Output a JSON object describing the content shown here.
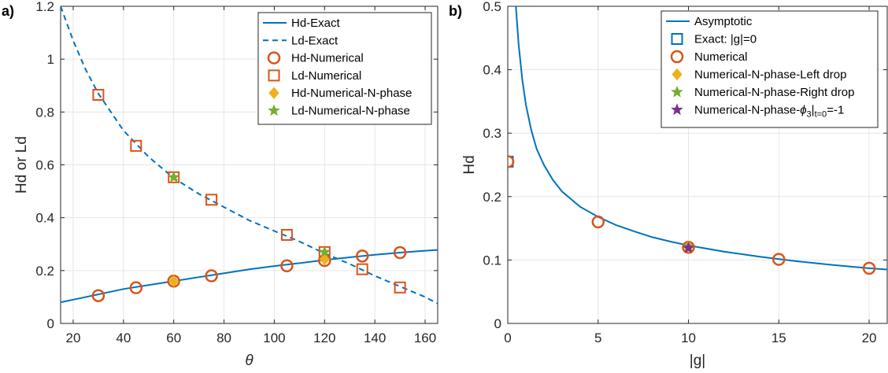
{
  "colors": {
    "blue": "#0072BD",
    "orange": "#D95319",
    "yellow": "#EDB120",
    "purple": "#7E2F8E",
    "green": "#77AC30",
    "grid": "#e6e6e6",
    "axis": "#262626"
  },
  "chart_data": [
    {
      "panel_label": "a)",
      "type": "line",
      "xlabel": "θ",
      "ylabel": "Hd or Ld",
      "xlim": [
        15,
        165
      ],
      "ylim": [
        0,
        1.2
      ],
      "xticks": [
        20,
        40,
        60,
        80,
        100,
        120,
        140,
        160
      ],
      "yticks": [
        0,
        0.2,
        0.4,
        0.6,
        0.8,
        1,
        1.2
      ],
      "xtick_labels": [
        "20",
        "40",
        "60",
        "80",
        "100",
        "120",
        "140",
        "160"
      ],
      "ytick_labels": [
        "0",
        "0.2",
        "0.4",
        "0.6",
        "0.8",
        "1",
        "1.2"
      ],
      "grid": true,
      "legend_position": "top-right",
      "legend": [
        {
          "label": "Hd-Exact",
          "marker": "solid-line",
          "color": "blue"
        },
        {
          "label": "Ld-Exact",
          "marker": "dashed-line",
          "color": "blue"
        },
        {
          "label": "Hd-Numerical",
          "marker": "circle",
          "color": "orange"
        },
        {
          "label": "Ld-Numerical",
          "marker": "square",
          "color": "orange"
        },
        {
          "label": "Hd-Numerical-N-phase",
          "marker": "diamond",
          "color": "yellow"
        },
        {
          "label": "Ld-Numerical-N-phase",
          "marker": "star",
          "color": "green"
        }
      ],
      "series": [
        {
          "name": "Hd-Exact",
          "style": "solid",
          "color": "blue",
          "x": [
            15,
            20,
            30,
            40,
            50,
            60,
            70,
            80,
            90,
            100,
            110,
            120,
            130,
            140,
            150,
            160,
            165
          ],
          "y": [
            0.08,
            0.09,
            0.11,
            0.13,
            0.145,
            0.16,
            0.175,
            0.19,
            0.205,
            0.217,
            0.228,
            0.24,
            0.25,
            0.26,
            0.268,
            0.275,
            0.278
          ]
        },
        {
          "name": "Ld-Exact",
          "style": "dashed",
          "color": "blue",
          "x": [
            15,
            20,
            25,
            30,
            40,
            50,
            60,
            70,
            80,
            90,
            100,
            110,
            120,
            130,
            140,
            150,
            160,
            165
          ],
          "y": [
            1.2,
            1.07,
            0.96,
            0.87,
            0.73,
            0.63,
            0.55,
            0.49,
            0.44,
            0.39,
            0.35,
            0.31,
            0.265,
            0.225,
            0.18,
            0.14,
            0.1,
            0.075
          ]
        },
        {
          "name": "Hd-Numerical",
          "marker": "circle",
          "color": "orange",
          "x": [
            30,
            45,
            60,
            75,
            105,
            120,
            135,
            150
          ],
          "y": [
            0.105,
            0.135,
            0.16,
            0.18,
            0.218,
            0.238,
            0.255,
            0.268
          ]
        },
        {
          "name": "Ld-Numerical",
          "marker": "square",
          "color": "orange",
          "x": [
            30,
            45,
            60,
            75,
            105,
            120,
            135,
            150
          ],
          "y": [
            0.865,
            0.672,
            0.553,
            0.468,
            0.335,
            0.27,
            0.205,
            0.136
          ]
        },
        {
          "name": "Hd-Numerical-N-phase",
          "marker": "diamond",
          "color": "yellow",
          "x": [
            60,
            120
          ],
          "y": [
            0.16,
            0.243
          ]
        },
        {
          "name": "Ld-Numerical-N-phase",
          "marker": "star",
          "color": "green",
          "x": [
            60,
            120
          ],
          "y": [
            0.553,
            0.27
          ]
        }
      ]
    },
    {
      "panel_label": "b)",
      "type": "line",
      "xlabel": "|g|",
      "ylabel": "Hd",
      "xlim": [
        0,
        21
      ],
      "ylim": [
        0,
        0.5
      ],
      "xticks": [
        0,
        5,
        10,
        15,
        20
      ],
      "yticks": [
        0,
        0.1,
        0.2,
        0.3,
        0.4,
        0.5
      ],
      "xtick_labels": [
        "0",
        "5",
        "10",
        "15",
        "20"
      ],
      "ytick_labels": [
        "0",
        "0.1",
        "0.2",
        "0.3",
        "0.4",
        "0.5"
      ],
      "grid": true,
      "legend_position": "top-right",
      "legend": [
        {
          "label": "Asymptotic",
          "marker": "solid-line",
          "color": "blue"
        },
        {
          "label": "Exact: |g|=0",
          "marker": "square",
          "color": "blue"
        },
        {
          "label": "Numerical",
          "marker": "circle",
          "color": "orange"
        },
        {
          "label": "Numerical-N-phase-Left drop",
          "marker": "diamond",
          "color": "yellow"
        },
        {
          "label": "Numerical-N-phase-Right drop",
          "marker": "star",
          "color": "green"
        },
        {
          "label_prefix": "Numerical-N-phase-",
          "label_phi": "ϕ",
          "label_phi_sub": "3",
          "label_bar": "|",
          "label_cond_sub": "t=0",
          "label_suffix": "=-1",
          "marker": "star",
          "color": "purple"
        }
      ],
      "series": [
        {
          "name": "Asymptotic",
          "style": "solid",
          "color": "blue",
          "x": [
            0.45,
            0.6,
            0.8,
            1,
            1.3,
            1.6,
            2,
            2.5,
            3,
            4,
            5,
            6,
            7,
            8,
            9,
            10,
            12,
            14,
            16,
            18,
            20,
            21
          ],
          "y": [
            0.5,
            0.44,
            0.385,
            0.345,
            0.305,
            0.275,
            0.25,
            0.226,
            0.208,
            0.184,
            0.168,
            0.155,
            0.145,
            0.136,
            0.129,
            0.123,
            0.113,
            0.105,
            0.098,
            0.092,
            0.087,
            0.085
          ]
        },
        {
          "name": "Exact: |g|=0",
          "marker": "square",
          "color": "blue",
          "x": [
            0
          ],
          "y": [
            0.255
          ]
        },
        {
          "name": "Numerical",
          "marker": "circle",
          "color": "orange",
          "x": [
            0,
            5,
            10,
            15,
            20
          ],
          "y": [
            0.255,
            0.16,
            0.12,
            0.101,
            0.087
          ]
        },
        {
          "name": "Numerical-N-phase-Left drop",
          "marker": "diamond",
          "color": "yellow",
          "x": [
            10
          ],
          "y": [
            0.121
          ]
        },
        {
          "name": "Numerical-N-phase-Right drop",
          "marker": "star",
          "color": "green",
          "x": [
            10
          ],
          "y": [
            0.121
          ]
        },
        {
          "name": "Numerical-N-phase-phi3=-1",
          "marker": "star",
          "color": "purple",
          "x": [
            10
          ],
          "y": [
            0.119
          ]
        }
      ]
    }
  ]
}
